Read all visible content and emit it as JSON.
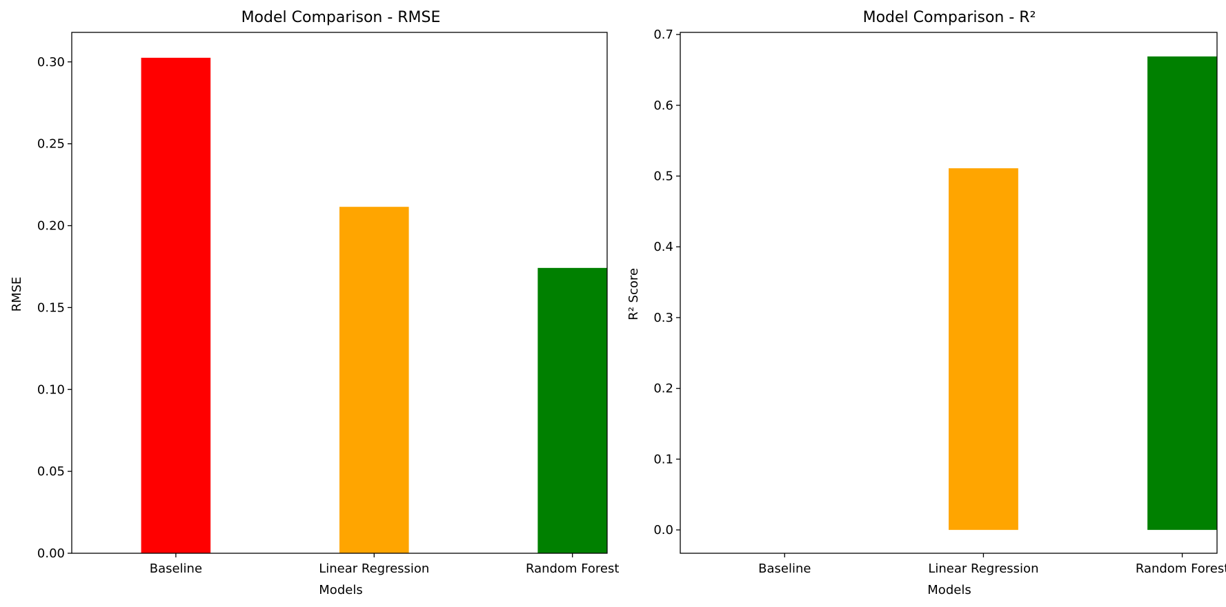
{
  "chart_data": [
    {
      "type": "bar",
      "title": "Model Comparison - RMSE",
      "xlabel": "Models",
      "ylabel": "RMSE",
      "categories": [
        "Baseline",
        "Linear Regression",
        "Random Forest"
      ],
      "values": [
        0.3025,
        0.2115,
        0.1742
      ],
      "colors": [
        "#ff0000",
        "#ffa500",
        "#008000"
      ],
      "ylim": [
        0,
        0.318
      ],
      "yticks": [
        "0.00",
        "0.05",
        "0.10",
        "0.15",
        "0.20",
        "0.25",
        "0.30"
      ],
      "ytick_values": [
        0,
        0.05,
        0.1,
        0.15,
        0.2,
        0.25,
        0.3
      ],
      "grid": false
    },
    {
      "type": "bar",
      "title": "Model Comparison - R²",
      "xlabel": "Models",
      "ylabel": "R² Score",
      "categories": [
        "Baseline",
        "Linear Regression",
        "Random Forest"
      ],
      "values": [
        0.0,
        0.511,
        0.669
      ],
      "colors": [
        "#ff0000",
        "#ffa500",
        "#008000"
      ],
      "ylim": [
        -0.033,
        0.703
      ],
      "yticks": [
        "0.0",
        "0.1",
        "0.2",
        "0.3",
        "0.4",
        "0.5",
        "0.6",
        "0.7"
      ],
      "ytick_values": [
        0,
        0.1,
        0.2,
        0.3,
        0.4,
        0.5,
        0.6,
        0.7
      ],
      "grid": false
    }
  ]
}
